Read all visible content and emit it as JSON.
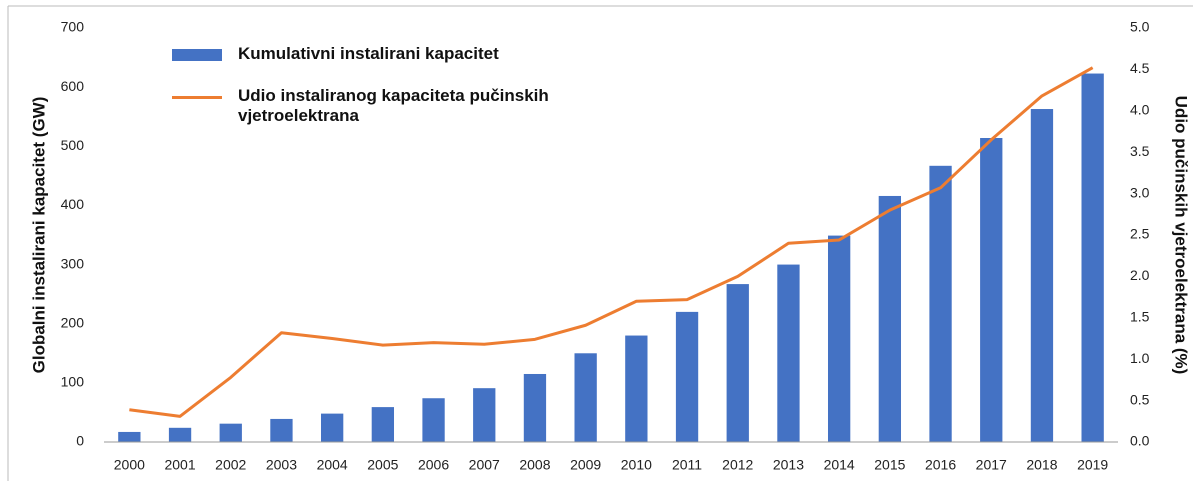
{
  "chart_data": {
    "type": "bar_line",
    "categories": [
      "2000",
      "2001",
      "2002",
      "2003",
      "2004",
      "2005",
      "2006",
      "2007",
      "2008",
      "2009",
      "2010",
      "2011",
      "2012",
      "2013",
      "2014",
      "2015",
      "2016",
      "2017",
      "2018",
      "2019"
    ],
    "series": [
      {
        "name": "Kumulativni instalirani kapacitet",
        "color": "#4472c4",
        "type": "bar",
        "values": [
          17,
          24,
          31,
          39,
          48,
          59,
          74,
          91,
          115,
          150,
          180,
          220,
          267,
          300,
          349,
          416,
          467,
          514,
          563,
          623
        ]
      },
      {
        "name": "Udio instaliranog kapaciteta pučinskih vjetroelektrana",
        "color": "#ed7d31",
        "type": "line",
        "axis": "y2",
        "values": [
          0.39,
          0.31,
          0.78,
          1.32,
          1.25,
          1.17,
          1.2,
          1.18,
          1.24,
          1.41,
          1.7,
          1.72,
          2.0,
          2.4,
          2.44,
          2.8,
          3.07,
          3.65,
          4.18,
          4.52
        ]
      }
    ],
    "y_label": "Globalni instalirani kapacitet (GW)",
    "y2_label": "Udio pučinskih vjetroelektrana (%)",
    "ylim": [
      0,
      700
    ],
    "yticks": [
      0,
      100,
      200,
      300,
      400,
      500,
      600,
      700
    ],
    "y2lim": [
      0,
      5
    ],
    "y2ticks": [
      {
        "value": 0,
        "label": "0.0"
      },
      0.5,
      {
        "value": 1,
        "label": "1.0"
      },
      1.5,
      {
        "value": 2,
        "label": "2.0"
      },
      2.5,
      {
        "value": 3,
        "label": "3.0"
      },
      3.5,
      {
        "value": 4,
        "label": "4.0"
      },
      4.5,
      {
        "value": 5,
        "label": "5.0"
      }
    ],
    "grid": false
  }
}
